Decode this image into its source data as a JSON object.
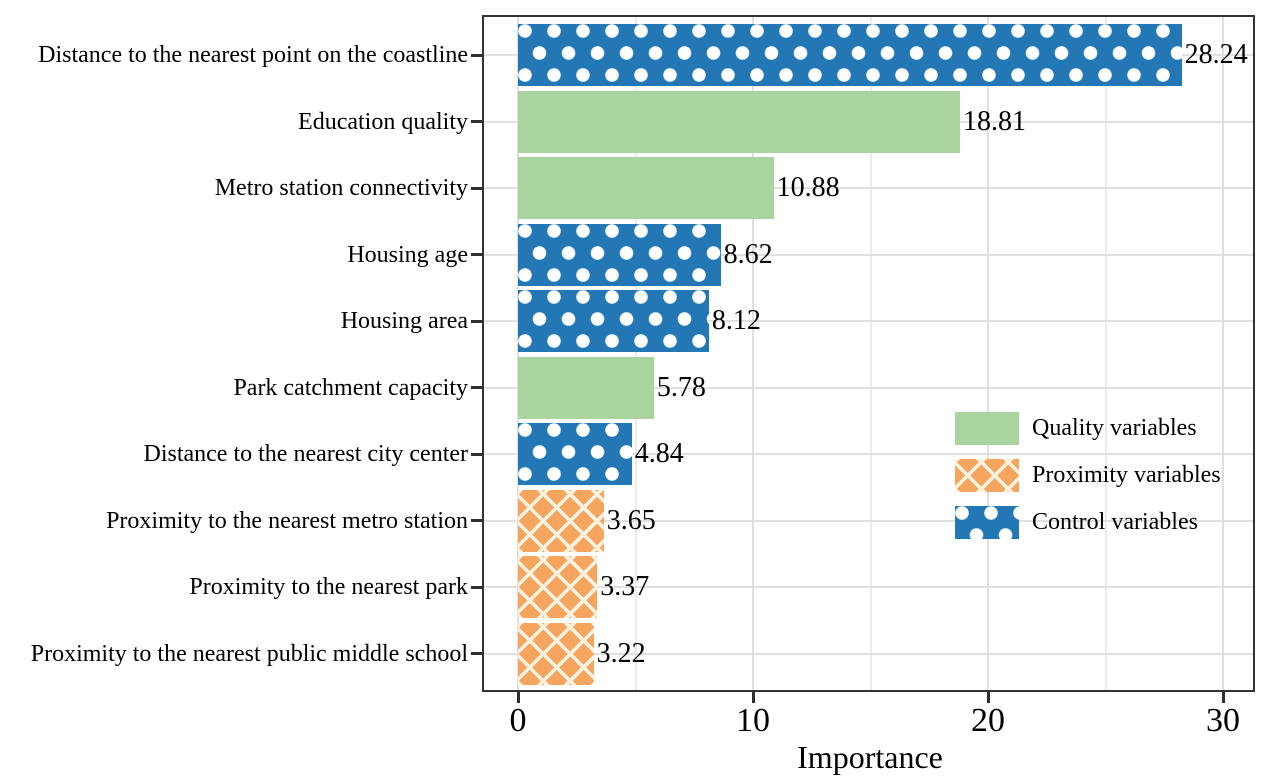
{
  "colors": {
    "quality_green": "#aad49e",
    "proximity_orange": "#f6a55f",
    "control_blue": "#2277b4",
    "pattern_dot_white": "#ffffff",
    "pattern_hatch_cream": "#faf2df",
    "grid_major": "#e0e0e0",
    "grid_minor": "#ebebeb",
    "panel_border": "#333333",
    "text": "#000000"
  },
  "chart_data": {
    "type": "bar",
    "orientation": "horizontal",
    "title": "",
    "xlabel": "Importance",
    "ylabel": "",
    "grid": "major-x, minor-x, major-y (per category)",
    "legend_position": "inside right, lower half",
    "x_axis": {
      "label": "Importance",
      "major_ticks": [
        0,
        10,
        20,
        30
      ],
      "minor_gridlines": [
        5,
        15,
        25
      ],
      "range": [
        -1.5,
        31.4
      ]
    },
    "categories": [
      "Distance to the nearest point on the coastline",
      "Education quality",
      "Metro station connectivity",
      "Housing age",
      "Housing area",
      "Park catchment capacity",
      "Distance to the nearest city center",
      "Proximity to the nearest metro station",
      "Proximity to the nearest park",
      "Proximity to the nearest public middle school"
    ],
    "values": [
      28.24,
      18.81,
      10.88,
      8.62,
      8.12,
      5.78,
      4.84,
      3.65,
      3.37,
      3.22
    ],
    "value_labels": [
      "28.24",
      "18.81",
      "10.88",
      "8.62",
      "8.12",
      "5.78",
      "4.84",
      "3.65",
      "3.37",
      "3.22"
    ],
    "groups": [
      "control",
      "quality",
      "quality",
      "control",
      "control",
      "quality",
      "control",
      "proximity",
      "proximity",
      "proximity"
    ],
    "legend": [
      {
        "label": "Quality variables",
        "group": "quality",
        "pattern": "solid-green"
      },
      {
        "label": "Proximity variables",
        "group": "proximity",
        "pattern": "orange-crosshatch"
      },
      {
        "label": "Control variables",
        "group": "control",
        "pattern": "blue-polkadot"
      }
    ]
  }
}
